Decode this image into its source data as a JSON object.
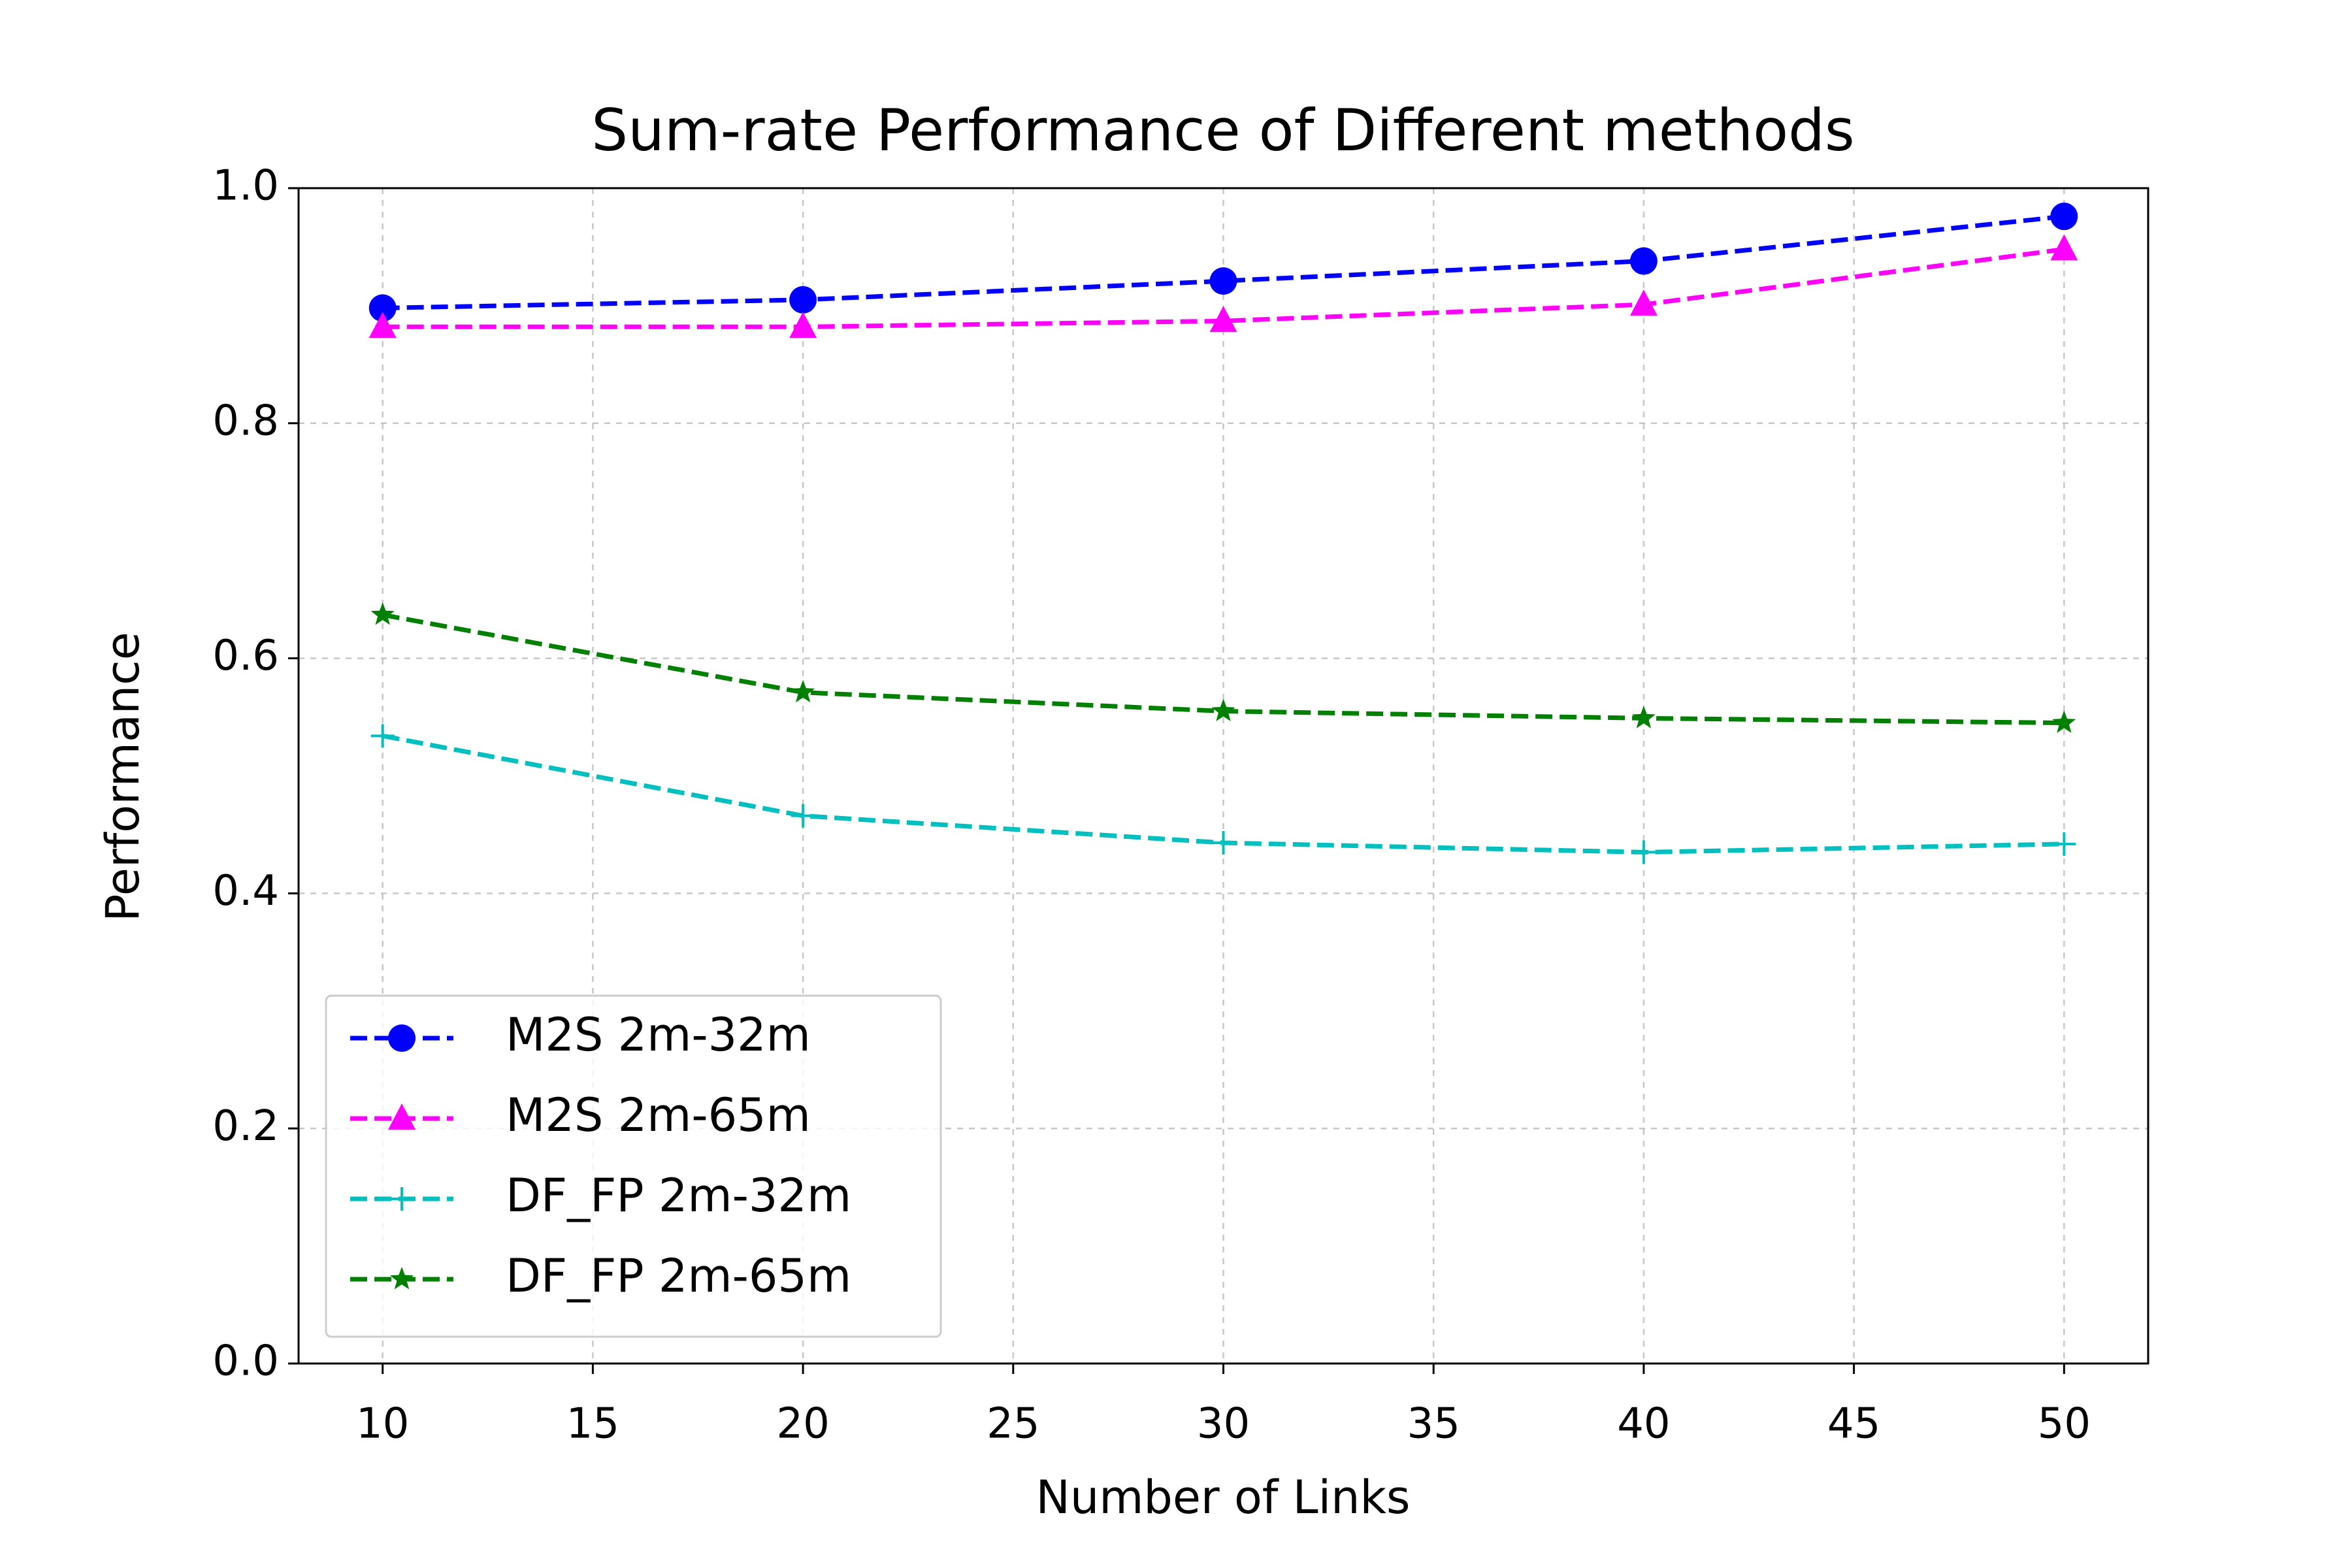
{
  "chart_data": {
    "type": "line",
    "title": "Sum-rate Performance of Different methods",
    "x_label": "Number of Links",
    "y_label": "Performance",
    "x": [
      10,
      20,
      30,
      40,
      50
    ],
    "series": [
      {
        "name": "M2S 2m-32m",
        "color": "#0000ff",
        "marker": "circle",
        "values": [
          0.898,
          0.905,
          0.921,
          0.938,
          0.976
        ]
      },
      {
        "name": "M2S 2m-65m",
        "color": "#ff00ff",
        "marker": "triangle",
        "values": [
          0.882,
          0.882,
          0.887,
          0.901,
          0.948
        ]
      },
      {
        "name": "DF_FP 2m-32m",
        "color": "#00bfbf",
        "marker": "plus",
        "values": [
          0.534,
          0.466,
          0.443,
          0.435,
          0.442
        ]
      },
      {
        "name": "DF_FP 2m-65m",
        "color": "#008000",
        "marker": "star",
        "values": [
          0.637,
          0.571,
          0.555,
          0.549,
          0.545
        ]
      }
    ],
    "xlim": [
      8,
      52
    ],
    "xticks": [
      10,
      15,
      20,
      25,
      30,
      35,
      40,
      45,
      50
    ],
    "ylim": [
      0,
      1
    ],
    "yticks": [
      {
        "value": 0,
        "label": "0.0"
      },
      {
        "value": 0.2,
        "label": "0.2"
      },
      {
        "value": 0.4,
        "label": "0.4"
      },
      {
        "value": 0.6,
        "label": "0.6"
      },
      {
        "value": 0.8,
        "label": "0.8"
      },
      {
        "value": 1,
        "label": "1.0"
      }
    ],
    "grid": true,
    "legend": "lower left"
  }
}
